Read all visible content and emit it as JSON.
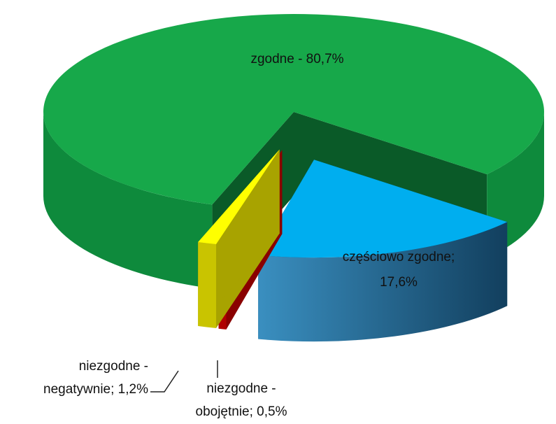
{
  "chart_data": {
    "type": "pie",
    "values": [
      80.7,
      17.6,
      0.5,
      1.2
    ],
    "value_labels": [
      [
        "zgodne - 80,7%"
      ],
      [
        "częściowo zgodne;",
        "17,6%"
      ],
      [
        "niezgodne -",
        "obojętnie; 0,5%"
      ],
      [
        "niezgodne -",
        "negatywnie; 1,2%"
      ]
    ],
    "colors": [
      "#17a84a",
      "#00aeef",
      "#e60000",
      "#ffff00"
    ]
  }
}
